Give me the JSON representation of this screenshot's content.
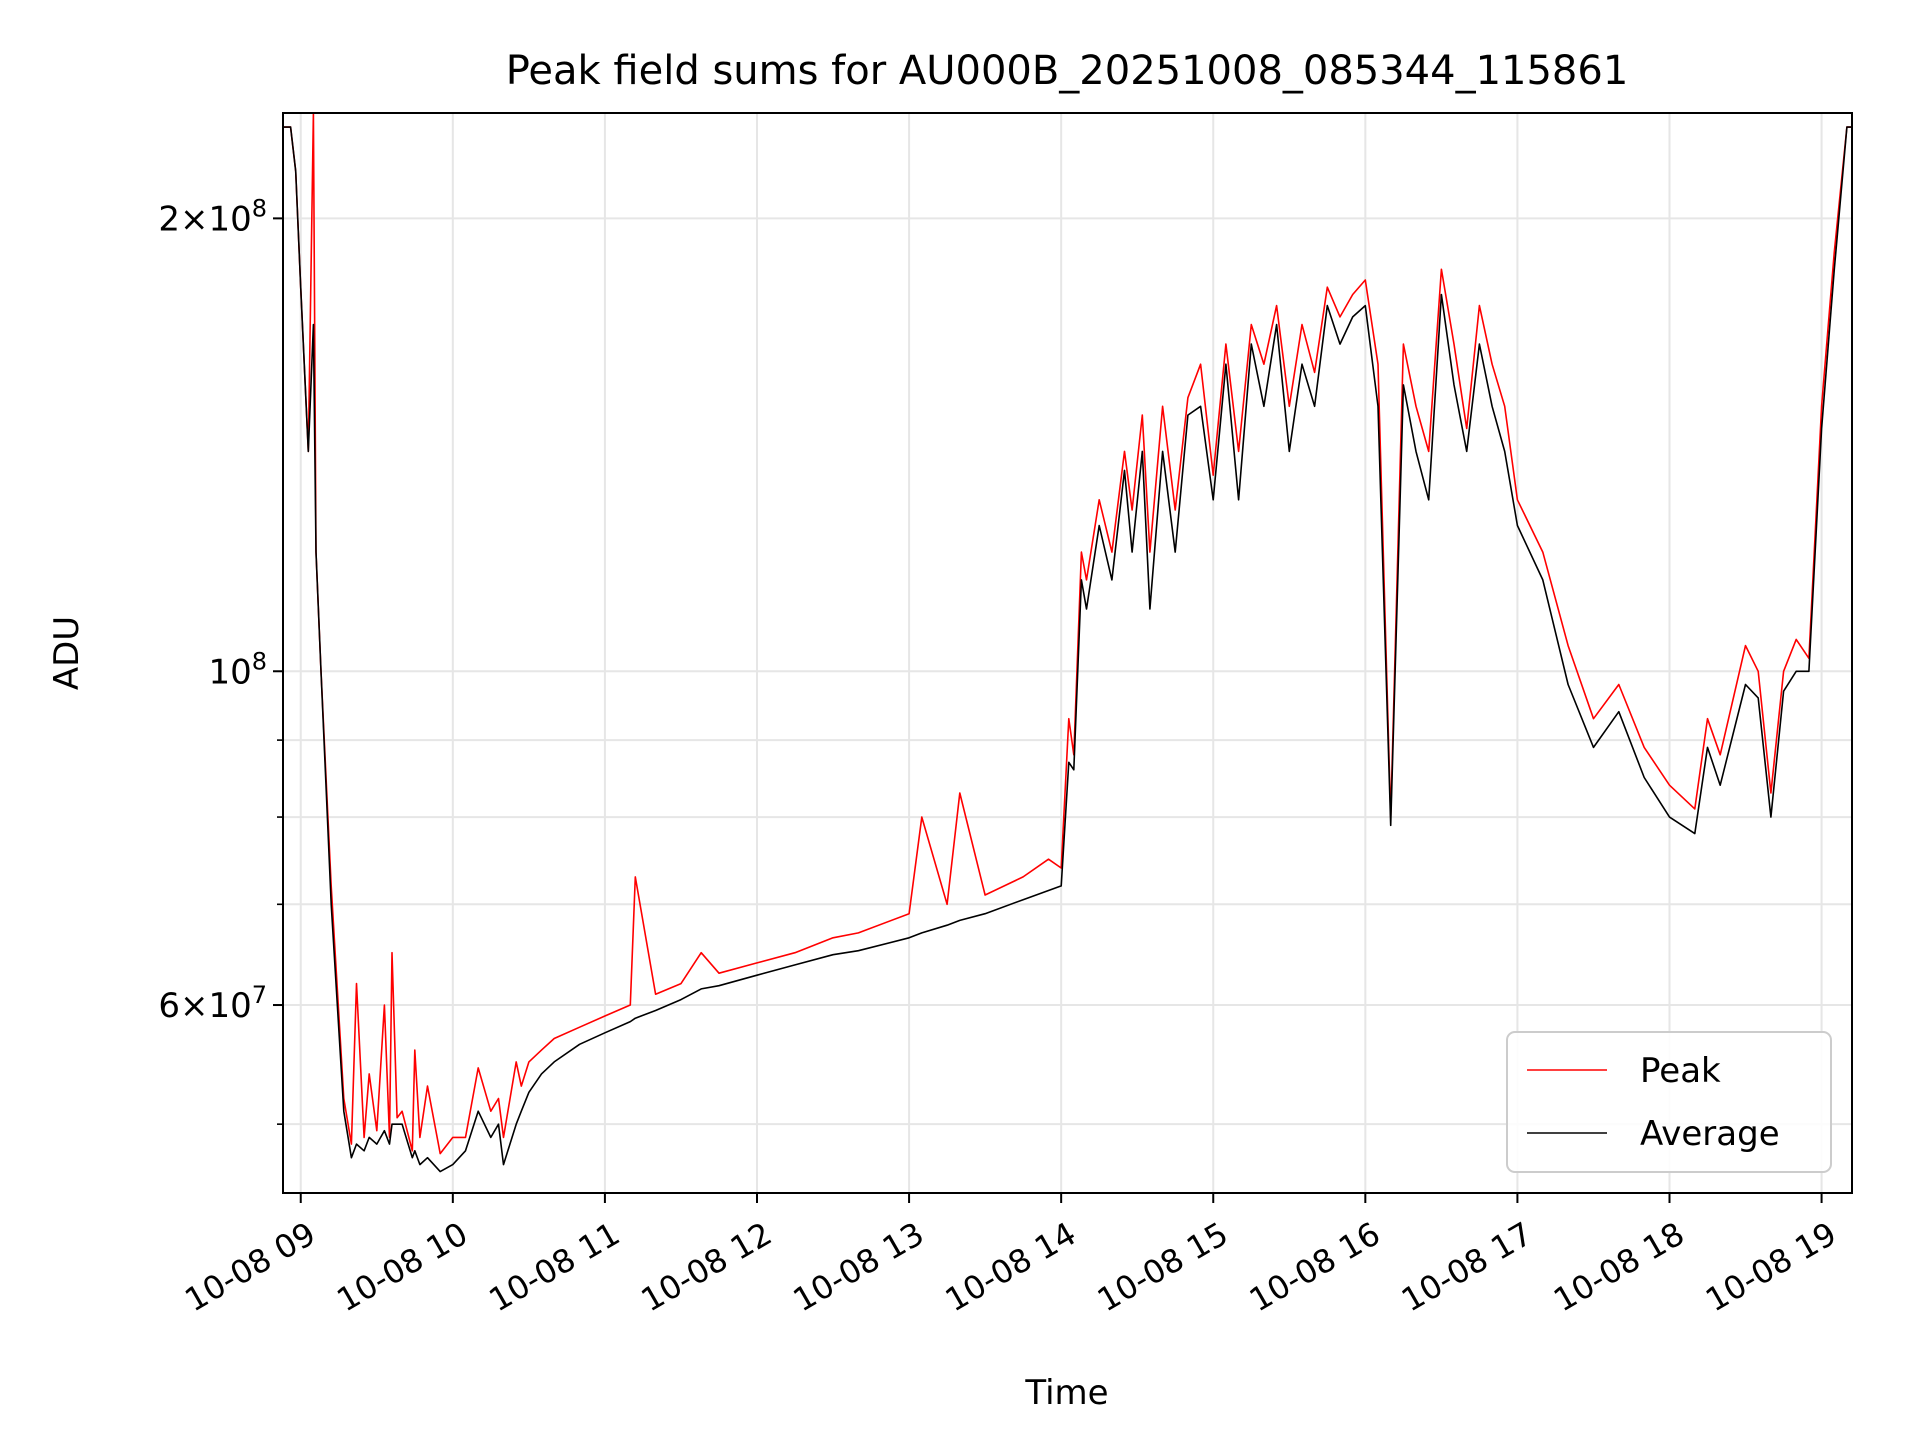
{
  "chart_data": {
    "type": "line",
    "title": "Peak field sums for AU000B_20251008_085344_115861",
    "xlabel": "Time",
    "ylabel": "ADU",
    "y_scale": "log",
    "grid": true,
    "legend_position": "lower right",
    "xlim": [
      "2025-10-08 08:53",
      "2025-10-08 19:12"
    ],
    "ylim": [
      45000000,
      235000000
    ],
    "x_ticks": [
      "10-08 09",
      "10-08 10",
      "10-08 11",
      "10-08 12",
      "10-08 13",
      "10-08 14",
      "10-08 15",
      "10-08 16",
      "10-08 17",
      "10-08 18",
      "10-08 19"
    ],
    "x_tick_times": [
      "2025-10-08 09:00",
      "2025-10-08 10:00",
      "2025-10-08 11:00",
      "2025-10-08 12:00",
      "2025-10-08 13:00",
      "2025-10-08 14:00",
      "2025-10-08 15:00",
      "2025-10-08 16:00",
      "2025-10-08 17:00",
      "2025-10-08 18:00",
      "2025-10-08 19:00"
    ],
    "y_ticks": [
      {
        "value": 200000000,
        "mantissa": "2",
        "times": "×",
        "base": "10",
        "exp": "8"
      },
      {
        "value": 100000000,
        "mantissa": "",
        "times": "",
        "base": "10",
        "exp": "8"
      },
      {
        "value": 60000000,
        "mantissa": "6",
        "times": "×",
        "base": "10",
        "exp": "7"
      }
    ],
    "y_minor_ticks": [
      50000000,
      70000000,
      80000000,
      90000000
    ],
    "series": [
      {
        "name": "Peak",
        "color": "#ff0000",
        "x": [
          "2025-10-08 08:53",
          "2025-10-08 08:56",
          "2025-10-08 08:58",
          "2025-10-08 09:00",
          "2025-10-08 09:03",
          "2025-10-08 09:05",
          "2025-10-08 09:06",
          "2025-10-08 09:08",
          "2025-10-08 09:12",
          "2025-10-08 09:17",
          "2025-10-08 09:20",
          "2025-10-08 09:22",
          "2025-10-08 09:25",
          "2025-10-08 09:27",
          "2025-10-08 09:30",
          "2025-10-08 09:33",
          "2025-10-08 09:35",
          "2025-10-08 09:36",
          "2025-10-08 09:38",
          "2025-10-08 09:40",
          "2025-10-08 09:44",
          "2025-10-08 09:45",
          "2025-10-08 09:47",
          "2025-10-08 09:50",
          "2025-10-08 09:55",
          "2025-10-08 10:00",
          "2025-10-08 10:05",
          "2025-10-08 10:10",
          "2025-10-08 10:15",
          "2025-10-08 10:18",
          "2025-10-08 10:20",
          "2025-10-08 10:25",
          "2025-10-08 10:27",
          "2025-10-08 10:30",
          "2025-10-08 10:35",
          "2025-10-08 10:40",
          "2025-10-08 10:50",
          "2025-10-08 11:00",
          "2025-10-08 11:10",
          "2025-10-08 11:12",
          "2025-10-08 11:20",
          "2025-10-08 11:30",
          "2025-10-08 11:38",
          "2025-10-08 11:45",
          "2025-10-08 12:00",
          "2025-10-08 12:15",
          "2025-10-08 12:30",
          "2025-10-08 12:40",
          "2025-10-08 13:00",
          "2025-10-08 13:05",
          "2025-10-08 13:15",
          "2025-10-08 13:20",
          "2025-10-08 13:30",
          "2025-10-08 13:45",
          "2025-10-08 13:55",
          "2025-10-08 14:00",
          "2025-10-08 14:03",
          "2025-10-08 14:05",
          "2025-10-08 14:08",
          "2025-10-08 14:10",
          "2025-10-08 14:15",
          "2025-10-08 14:20",
          "2025-10-08 14:25",
          "2025-10-08 14:28",
          "2025-10-08 14:32",
          "2025-10-08 14:35",
          "2025-10-08 14:40",
          "2025-10-08 14:45",
          "2025-10-08 14:50",
          "2025-10-08 14:55",
          "2025-10-08 15:00",
          "2025-10-08 15:05",
          "2025-10-08 15:10",
          "2025-10-08 15:15",
          "2025-10-08 15:20",
          "2025-10-08 15:25",
          "2025-10-08 15:30",
          "2025-10-08 15:35",
          "2025-10-08 15:40",
          "2025-10-08 15:45",
          "2025-10-08 15:50",
          "2025-10-08 15:55",
          "2025-10-08 16:00",
          "2025-10-08 16:05",
          "2025-10-08 16:10",
          "2025-10-08 16:15",
          "2025-10-08 16:20",
          "2025-10-08 16:25",
          "2025-10-08 16:30",
          "2025-10-08 16:35",
          "2025-10-08 16:40",
          "2025-10-08 16:45",
          "2025-10-08 16:50",
          "2025-10-08 16:55",
          "2025-10-08 17:00",
          "2025-10-08 17:10",
          "2025-10-08 17:20",
          "2025-10-08 17:30",
          "2025-10-08 17:40",
          "2025-10-08 17:50",
          "2025-10-08 18:00",
          "2025-10-08 18:10",
          "2025-10-08 18:15",
          "2025-10-08 18:20",
          "2025-10-08 18:30",
          "2025-10-08 18:35",
          "2025-10-08 18:40",
          "2025-10-08 18:45",
          "2025-10-08 18:50",
          "2025-10-08 18:55",
          "2025-10-08 19:00",
          "2025-10-08 19:05",
          "2025-10-08 19:10",
          "2025-10-08 19:12"
        ],
        "y": [
          230000000,
          230000000,
          215000000,
          180000000,
          140000000,
          250000000,
          120000000,
          100000000,
          72000000,
          52000000,
          48500000,
          62000000,
          49000000,
          54000000,
          49500000,
          60000000,
          49000000,
          65000000,
          50500000,
          51000000,
          48000000,
          56000000,
          49000000,
          53000000,
          47800000,
          49000000,
          49000000,
          54500000,
          51000000,
          52000000,
          49000000,
          55000000,
          53000000,
          55000000,
          56000000,
          57000000,
          58000000,
          59000000,
          60000000,
          73000000,
          61000000,
          62000000,
          65000000,
          63000000,
          64000000,
          65000000,
          66500000,
          67000000,
          69000000,
          80000000,
          70000000,
          83000000,
          71000000,
          73000000,
          75000000,
          74000000,
          93000000,
          88000000,
          120000000,
          115000000,
          130000000,
          120000000,
          140000000,
          128000000,
          148000000,
          120000000,
          150000000,
          128000000,
          152000000,
          160000000,
          135000000,
          165000000,
          140000000,
          170000000,
          160000000,
          175000000,
          150000000,
          170000000,
          158000000,
          180000000,
          172000000,
          178000000,
          182000000,
          160000000,
          80000000,
          165000000,
          150000000,
          140000000,
          185000000,
          165000000,
          145000000,
          175000000,
          160000000,
          150000000,
          130000000,
          120000000,
          104000000,
          93000000,
          98000000,
          89000000,
          84000000,
          81000000,
          93000000,
          88000000,
          104000000,
          100000000,
          83000000,
          100000000,
          105000000,
          102000000,
          150000000,
          190000000,
          230000000,
          230000000
        ]
      },
      {
        "name": "Average",
        "color": "#000000",
        "x": [
          "2025-10-08 08:53",
          "2025-10-08 08:56",
          "2025-10-08 08:58",
          "2025-10-08 09:00",
          "2025-10-08 09:03",
          "2025-10-08 09:05",
          "2025-10-08 09:06",
          "2025-10-08 09:08",
          "2025-10-08 09:12",
          "2025-10-08 09:17",
          "2025-10-08 09:20",
          "2025-10-08 09:22",
          "2025-10-08 09:25",
          "2025-10-08 09:27",
          "2025-10-08 09:30",
          "2025-10-08 09:33",
          "2025-10-08 09:35",
          "2025-10-08 09:36",
          "2025-10-08 09:38",
          "2025-10-08 09:40",
          "2025-10-08 09:44",
          "2025-10-08 09:45",
          "2025-10-08 09:47",
          "2025-10-08 09:50",
          "2025-10-08 09:55",
          "2025-10-08 10:00",
          "2025-10-08 10:05",
          "2025-10-08 10:10",
          "2025-10-08 10:15",
          "2025-10-08 10:18",
          "2025-10-08 10:20",
          "2025-10-08 10:25",
          "2025-10-08 10:27",
          "2025-10-08 10:30",
          "2025-10-08 10:35",
          "2025-10-08 10:40",
          "2025-10-08 10:50",
          "2025-10-08 11:00",
          "2025-10-08 11:10",
          "2025-10-08 11:12",
          "2025-10-08 11:20",
          "2025-10-08 11:30",
          "2025-10-08 11:38",
          "2025-10-08 11:45",
          "2025-10-08 12:00",
          "2025-10-08 12:15",
          "2025-10-08 12:30",
          "2025-10-08 12:40",
          "2025-10-08 13:00",
          "2025-10-08 13:05",
          "2025-10-08 13:15",
          "2025-10-08 13:20",
          "2025-10-08 13:30",
          "2025-10-08 13:45",
          "2025-10-08 13:55",
          "2025-10-08 14:00",
          "2025-10-08 14:03",
          "2025-10-08 14:05",
          "2025-10-08 14:08",
          "2025-10-08 14:10",
          "2025-10-08 14:15",
          "2025-10-08 14:20",
          "2025-10-08 14:25",
          "2025-10-08 14:28",
          "2025-10-08 14:32",
          "2025-10-08 14:35",
          "2025-10-08 14:40",
          "2025-10-08 14:45",
          "2025-10-08 14:50",
          "2025-10-08 14:55",
          "2025-10-08 15:00",
          "2025-10-08 15:05",
          "2025-10-08 15:10",
          "2025-10-08 15:15",
          "2025-10-08 15:20",
          "2025-10-08 15:25",
          "2025-10-08 15:30",
          "2025-10-08 15:35",
          "2025-10-08 15:40",
          "2025-10-08 15:45",
          "2025-10-08 15:50",
          "2025-10-08 15:55",
          "2025-10-08 16:00",
          "2025-10-08 16:05",
          "2025-10-08 16:10",
          "2025-10-08 16:15",
          "2025-10-08 16:20",
          "2025-10-08 16:25",
          "2025-10-08 16:30",
          "2025-10-08 16:35",
          "2025-10-08 16:40",
          "2025-10-08 16:45",
          "2025-10-08 16:50",
          "2025-10-08 16:55",
          "2025-10-08 17:00",
          "2025-10-08 17:10",
          "2025-10-08 17:20",
          "2025-10-08 17:30",
          "2025-10-08 17:40",
          "2025-10-08 17:50",
          "2025-10-08 18:00",
          "2025-10-08 18:10",
          "2025-10-08 18:15",
          "2025-10-08 18:20",
          "2025-10-08 18:30",
          "2025-10-08 18:35",
          "2025-10-08 18:40",
          "2025-10-08 18:45",
          "2025-10-08 18:50",
          "2025-10-08 18:55",
          "2025-10-08 19:00",
          "2025-10-08 19:05",
          "2025-10-08 19:10",
          "2025-10-08 19:12"
        ],
        "y": [
          230000000,
          230000000,
          215000000,
          180000000,
          140000000,
          170000000,
          120000000,
          100000000,
          70000000,
          51000000,
          47500000,
          48500000,
          48000000,
          49000000,
          48500000,
          49500000,
          48500000,
          50000000,
          50000000,
          50000000,
          47500000,
          48000000,
          47000000,
          47500000,
          46500000,
          47000000,
          48000000,
          51000000,
          49000000,
          50000000,
          47000000,
          50000000,
          51000000,
          52500000,
          54000000,
          55000000,
          56500000,
          57500000,
          58500000,
          58800000,
          59500000,
          60500000,
          61500000,
          61800000,
          62800000,
          63800000,
          64800000,
          65200000,
          66500000,
          67000000,
          67800000,
          68300000,
          69000000,
          70500000,
          71500000,
          72000000,
          87000000,
          86000000,
          115000000,
          110000000,
          125000000,
          115000000,
          136000000,
          120000000,
          140000000,
          110000000,
          140000000,
          120000000,
          148000000,
          150000000,
          130000000,
          160000000,
          130000000,
          165000000,
          150000000,
          170000000,
          140000000,
          160000000,
          150000000,
          175000000,
          165000000,
          172000000,
          175000000,
          150000000,
          79000000,
          155000000,
          140000000,
          130000000,
          178000000,
          155000000,
          140000000,
          165000000,
          150000000,
          140000000,
          125000000,
          115000000,
          98000000,
          89000000,
          94000000,
          85000000,
          80000000,
          78000000,
          89000000,
          84000000,
          98000000,
          96000000,
          80000000,
          97000000,
          100000000,
          100000000,
          145000000,
          185000000,
          230000000,
          230000000
        ]
      }
    ]
  }
}
